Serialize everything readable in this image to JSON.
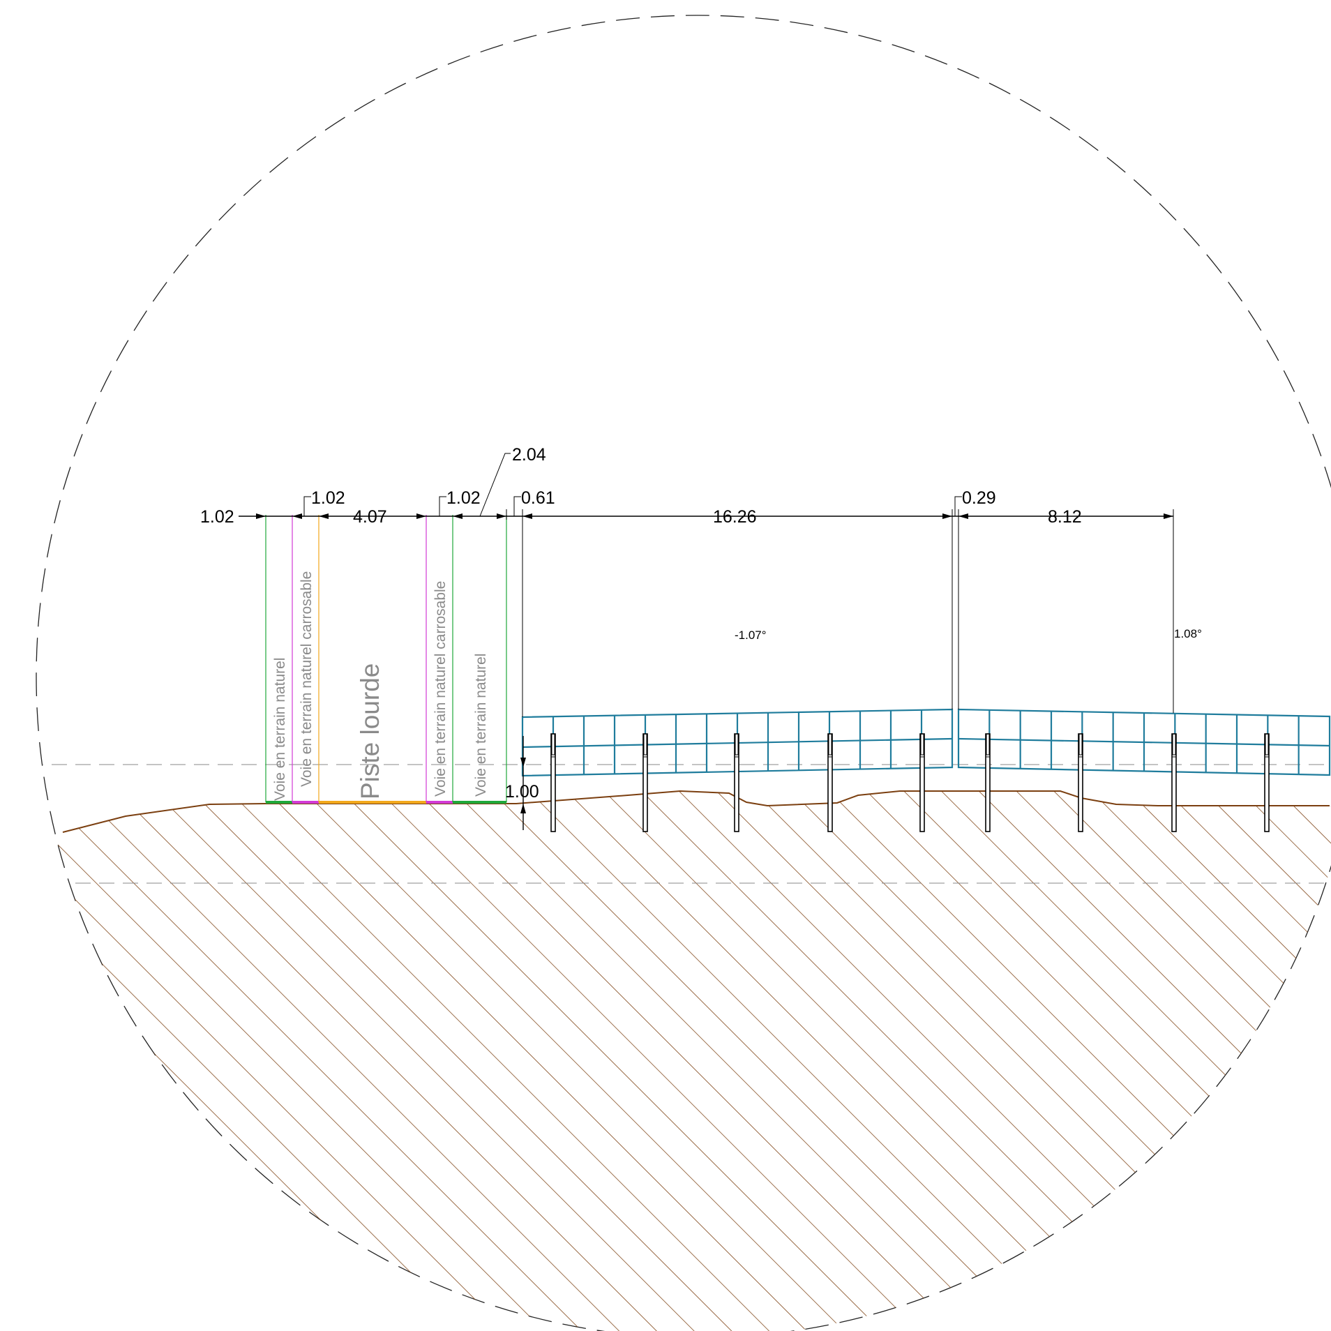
{
  "dimensions": {
    "d_left": "1.02",
    "d_verge_top": "1.02",
    "d_piste": "4.07",
    "d_verge2_top": "1.02",
    "d_combined": "2.04",
    "d_gap": "0.61",
    "d_array1": "16.26",
    "d_joint": "0.29",
    "d_array2": "8.12",
    "d_height": "1.00"
  },
  "angles": {
    "left_table": "-1.07°",
    "right_table": "1.08°"
  },
  "zones": {
    "natural_left": "Voie en terrain naturel",
    "carrossable_left": "Voie en terrain naturel carrosable",
    "piste": "Piste lourde",
    "carrossable_right": "Voie en terrain naturel carrosable",
    "natural_right": "Voie en terrain naturel"
  },
  "colors": {
    "panel": "#1f7c9c",
    "ground": "#7b3f10",
    "natural": "#1fa83a",
    "carrossable": "#d23ad6",
    "piste": "#f2a81c"
  }
}
